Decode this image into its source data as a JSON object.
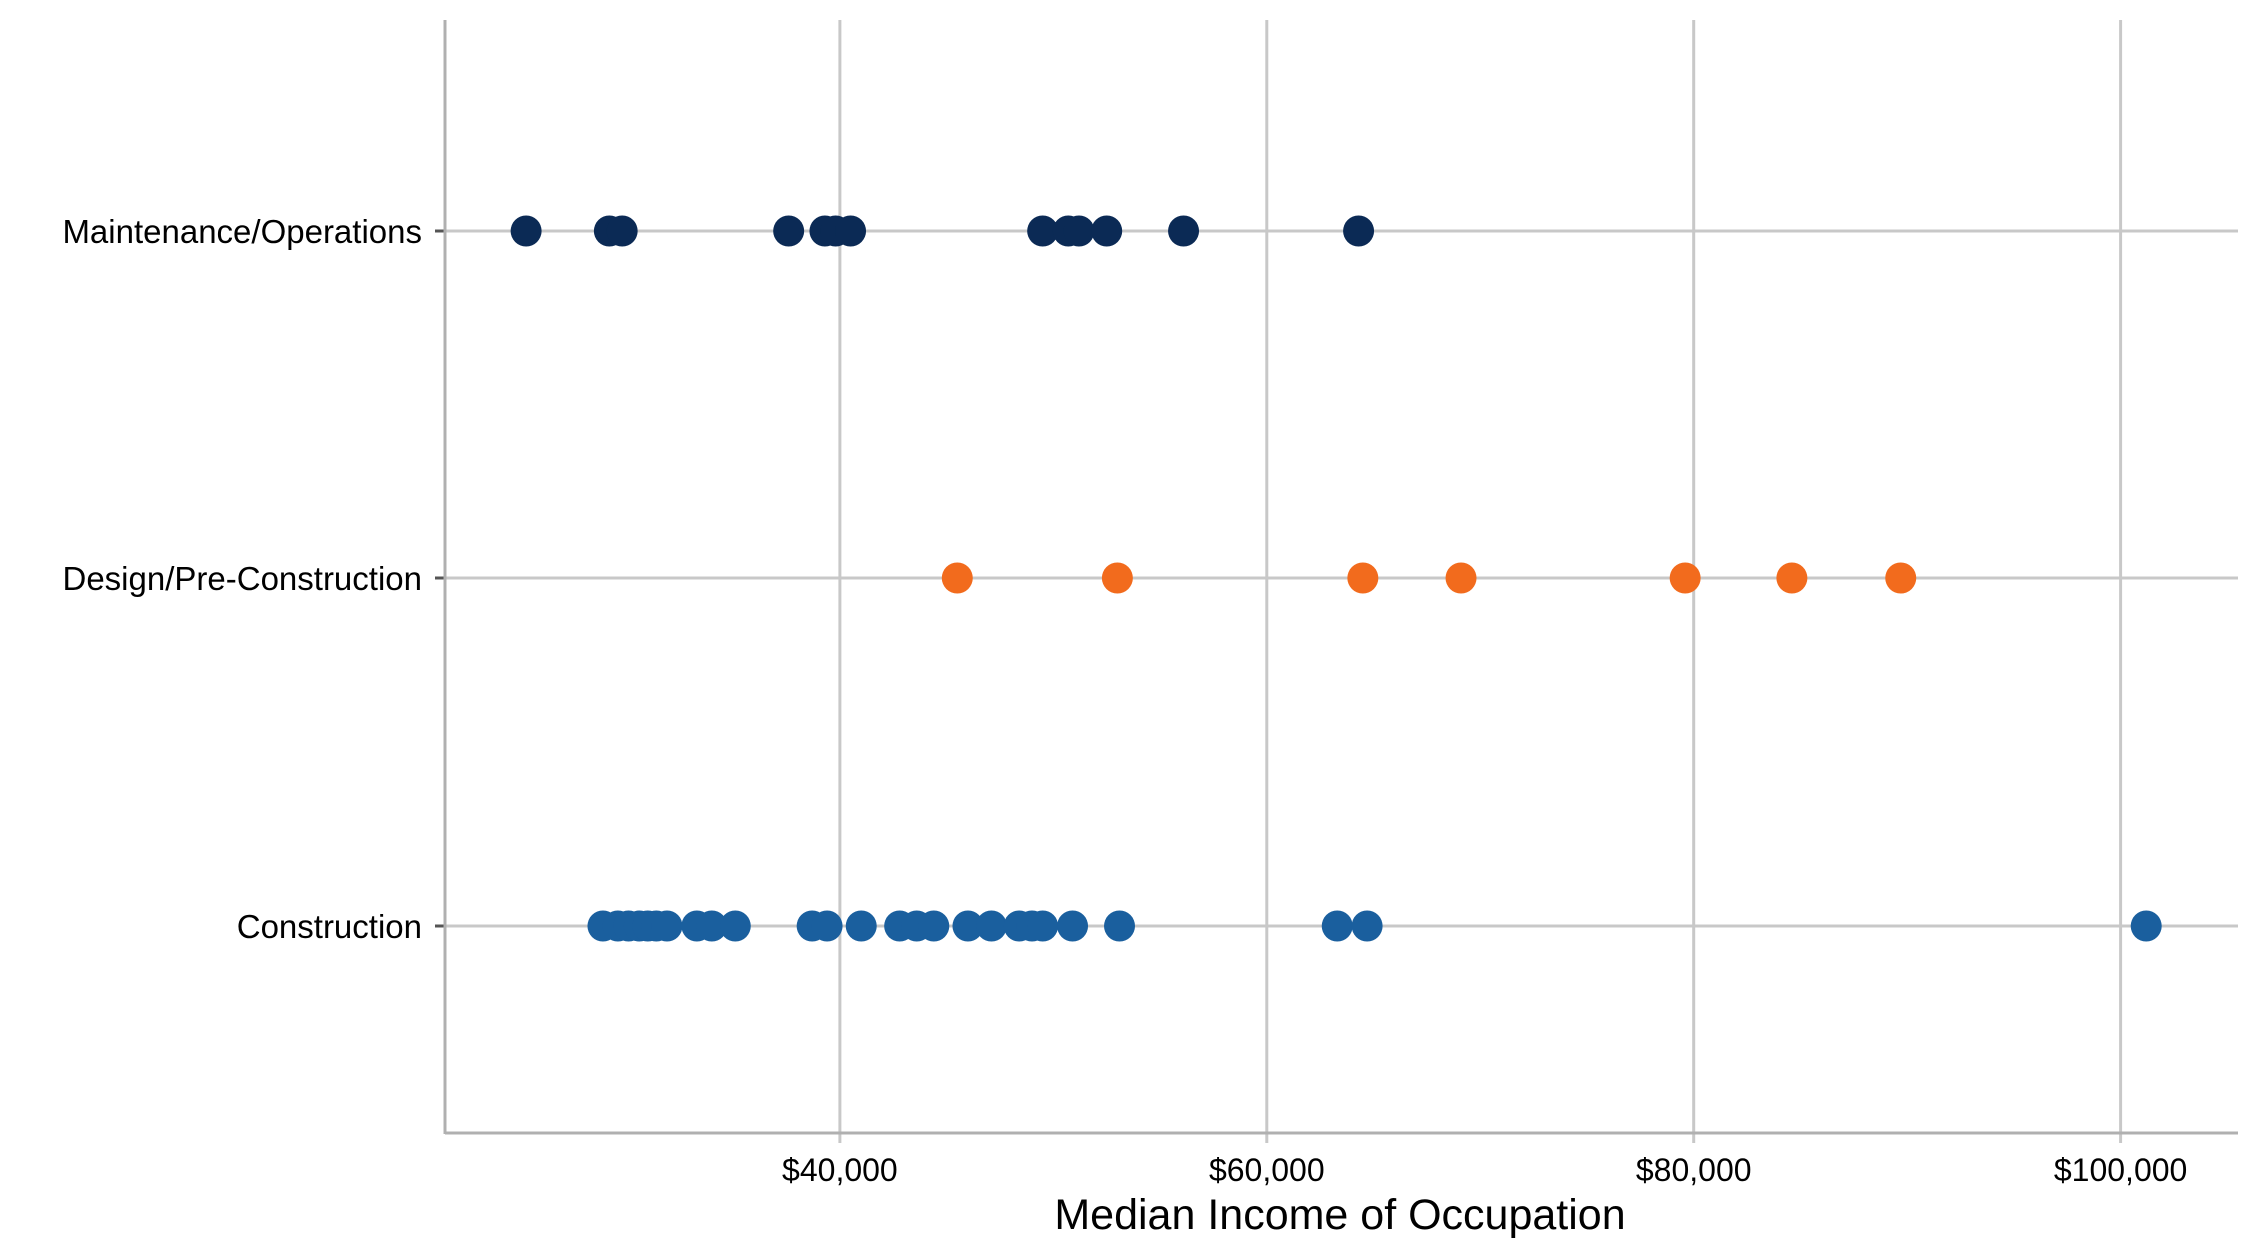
{
  "chart_data": {
    "type": "scatter",
    "title": "",
    "xlabel": "Median Income of Occupation",
    "ylabel": "",
    "xlim": [
      21500,
      105500
    ],
    "x_ticks": [
      {
        "value": 40000,
        "label": "$40,000"
      },
      {
        "value": 60000,
        "label": "$60,000"
      },
      {
        "value": 80000,
        "label": "$80,000"
      },
      {
        "value": 100000,
        "label": "$100,000"
      }
    ],
    "categories": [
      "Construction",
      "Design/Pre-Construction",
      "Maintenance/Operations"
    ],
    "grid": true,
    "legend": "none",
    "series": [
      {
        "category": "Maintenance/Operations",
        "color": "#0b2a55",
        "x": [
          25300,
          29200,
          29800,
          37600,
          39300,
          39800,
          40500,
          49500,
          50700,
          51200,
          52500,
          56100,
          64300
        ]
      },
      {
        "category": "Design/Pre-Construction",
        "color": "#f26b1d",
        "x": [
          45500,
          53000,
          64500,
          69100,
          79600,
          84600,
          89700
        ]
      },
      {
        "category": "Construction",
        "color": "#1a5f9e",
        "x": [
          28900,
          29600,
          30100,
          30600,
          31000,
          31400,
          31900,
          33300,
          34000,
          35100,
          38700,
          39400,
          41000,
          42800,
          43600,
          44400,
          46000,
          47100,
          48400,
          49000,
          49500,
          50900,
          53100,
          63300,
          64700,
          101200
        ]
      }
    ]
  }
}
